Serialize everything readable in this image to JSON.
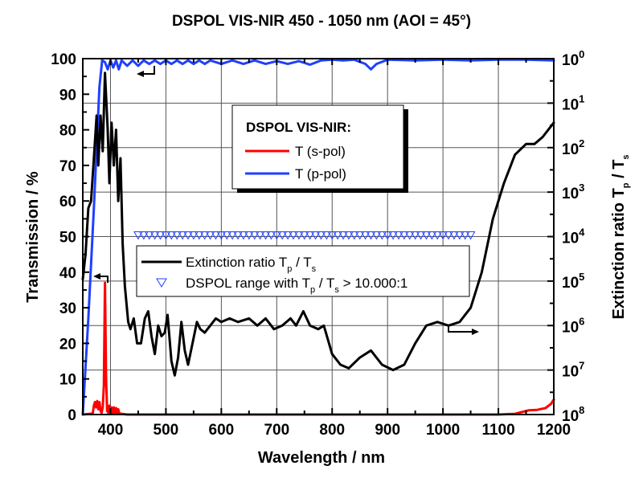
{
  "chart_data": {
    "type": "line",
    "title": "DSPOL VIS-NIR 450 - 1050 nm (AOI = 45°)",
    "xlabel": "Wavelength / nm",
    "ylabel": "Transmission / %",
    "y2label": "Extinction ratio T_p / T_s",
    "y2label_parts": {
      "main": "Extinction ratio T",
      "sub1": "p",
      "mid": " / T",
      "sub2": "s"
    },
    "xlim": [
      350,
      1200
    ],
    "ylim": [
      0,
      100
    ],
    "y2lim_log10": [
      0,
      8
    ],
    "y2_direction": "inverted",
    "grid": true,
    "x_ticks": [
      "400",
      "500",
      "600",
      "700",
      "800",
      "900",
      "1000",
      "1100",
      "1200"
    ],
    "x_tick_values": [
      400,
      500,
      600,
      700,
      800,
      900,
      1000,
      1100,
      1200
    ],
    "y_ticks": [
      "0",
      "10",
      "20",
      "30",
      "40",
      "50",
      "60",
      "70",
      "80",
      "90",
      "100"
    ],
    "y_tick_values": [
      0,
      10,
      20,
      30,
      40,
      50,
      60,
      70,
      80,
      90,
      100
    ],
    "y2_ticks": [
      {
        "base": "10",
        "exp": "0"
      },
      {
        "base": "10",
        "exp": "1"
      },
      {
        "base": "10",
        "exp": "2"
      },
      {
        "base": "10",
        "exp": "3"
      },
      {
        "base": "10",
        "exp": "4"
      },
      {
        "base": "10",
        "exp": "5"
      },
      {
        "base": "10",
        "exp": "6"
      },
      {
        "base": "10",
        "exp": "7"
      },
      {
        "base": "10",
        "exp": "8"
      }
    ],
    "legend1": {
      "title": "DSPOL VIS-NIR:",
      "entries": [
        {
          "label": "T (s-pol)",
          "color": "#ff0000"
        },
        {
          "label": "T (p-pol)",
          "color": "#1f3fff"
        }
      ],
      "placement": "upper-center"
    },
    "legend2": {
      "entries": [
        {
          "label_main": "Extinction ratio T",
          "sub1": "p",
          "mid": " / T",
          "sub2": "s",
          "color": "#000000",
          "marker": "line"
        },
        {
          "label_main": "DSPOL range with T",
          "sub1": "p",
          "mid": " / T",
          "sub2": "s",
          "tail": " > 10.000:1",
          "color": "#1f3fff",
          "marker": "triangle-down"
        }
      ],
      "placement": "center"
    },
    "series": [
      {
        "name": "T (s-pol)",
        "axis": "left",
        "color": "#ff0000",
        "x": [
          350,
          368,
          370,
          372,
          374,
          376,
          378,
          380,
          382,
          384,
          386,
          388,
          390,
          392,
          394,
          396,
          398,
          400,
          402,
          404,
          406,
          408,
          410,
          412,
          414,
          416,
          420,
          430,
          500,
          700,
          900,
          1100,
          1130,
          1145,
          1155,
          1170,
          1185,
          1195,
          1200
        ],
        "y": [
          0,
          0.3,
          2.5,
          3.5,
          2,
          3.8,
          1.5,
          3.5,
          1,
          0.5,
          2,
          8,
          37,
          10,
          1,
          0.5,
          2.5,
          0.5,
          2,
          0.3,
          2,
          0.5,
          1.8,
          0.3,
          1.5,
          0.3,
          0.2,
          0,
          0,
          0,
          0,
          0,
          0.2,
          0.8,
          1.2,
          1.3,
          1.8,
          3,
          4.2
        ]
      },
      {
        "name": "T (p-pol)",
        "axis": "left",
        "color": "#1f3fff",
        "x": [
          350,
          360,
          370,
          380,
          385,
          390,
          395,
          400,
          405,
          410,
          415,
          420,
          430,
          440,
          450,
          460,
          470,
          480,
          490,
          500,
          510,
          520,
          530,
          540,
          550,
          560,
          570,
          580,
          600,
          620,
          640,
          660,
          680,
          700,
          720,
          740,
          760,
          780,
          800,
          820,
          840,
          860,
          870,
          880,
          900,
          950,
          1000,
          1050,
          1100,
          1150,
          1200
        ],
        "y": [
          0,
          27,
          58,
          92,
          99.5,
          99,
          97,
          99.5,
          97.5,
          99.5,
          97,
          99.5,
          98,
          99.5,
          98,
          99.5,
          98.5,
          99.5,
          98.5,
          99.5,
          98.5,
          99.5,
          98.5,
          99.5,
          98.5,
          99.5,
          98.5,
          99.5,
          98.5,
          99.5,
          98.5,
          99.5,
          98.5,
          99.3,
          98.5,
          99.3,
          98.3,
          99.5,
          99.7,
          99.5,
          99.7,
          98.5,
          97,
          98.5,
          99.7,
          99.5,
          99.7,
          99.5,
          99.7,
          99.7,
          99.5
        ]
      },
      {
        "name": "Extinction ratio Tp / Ts",
        "axis": "right",
        "color": "#000000",
        "unit": "log10 of extinction ratio (decades)",
        "x": [
          350,
          355,
          360,
          365,
          370,
          375,
          378,
          382,
          386,
          390,
          395,
          398,
          402,
          406,
          410,
          414,
          418,
          422,
          426,
          432,
          436,
          442,
          448,
          455,
          462,
          468,
          474,
          480,
          486,
          492,
          498,
          503,
          510,
          516,
          522,
          528,
          534,
          540,
          548,
          556,
          562,
          570,
          580,
          590,
          600,
          615,
          630,
          650,
          665,
          680,
          695,
          710,
          725,
          735,
          748,
          760,
          775,
          785,
          800,
          815,
          830,
          850,
          870,
          890,
          910,
          930,
          950,
          970,
          990,
          1010,
          1030,
          1050,
          1070,
          1090,
          1110,
          1130,
          1150,
          1165,
          1180,
          1200
        ],
        "log10": [
          4.96,
          4.4,
          3.36,
          3.2,
          2.24,
          1.28,
          2.4,
          1.28,
          2.08,
          0.32,
          1.6,
          2.8,
          1.44,
          2.4,
          1.6,
          3.2,
          2.24,
          4.16,
          5.12,
          5.92,
          6.08,
          5.84,
          6.4,
          6.4,
          5.84,
          5.68,
          6.24,
          6.64,
          6.0,
          6.24,
          6.16,
          5.76,
          6.8,
          7.12,
          6.72,
          5.92,
          6.56,
          6.88,
          6.4,
          5.92,
          6.08,
          6.16,
          6.0,
          5.84,
          5.92,
          5.84,
          5.92,
          5.84,
          6.0,
          5.84,
          6.08,
          6.0,
          5.84,
          6.0,
          5.68,
          6.0,
          6.08,
          6.0,
          6.64,
          6.88,
          6.96,
          6.72,
          6.56,
          6.88,
          7.0,
          6.88,
          6.4,
          6.0,
          5.92,
          6.0,
          5.92,
          5.6,
          4.8,
          3.6,
          2.8,
          2.16,
          1.92,
          1.92,
          1.76,
          1.44
        ]
      },
      {
        "name": "DSPOL range with Tp / Ts > 10.000:1",
        "axis": "right",
        "color": "#1f3fff",
        "marker": "triangle-down",
        "x_range": [
          450,
          1050
        ],
        "log10_level": 4
      }
    ],
    "annotations": [
      {
        "type": "arrow",
        "points_to": "left axis",
        "attached_to": "T (p-pol)"
      },
      {
        "type": "arrow",
        "points_to": "left axis",
        "attached_to": "T (s-pol)"
      },
      {
        "type": "arrow",
        "points_to": "right axis",
        "attached_to": "Extinction ratio Tp / Ts"
      }
    ]
  }
}
